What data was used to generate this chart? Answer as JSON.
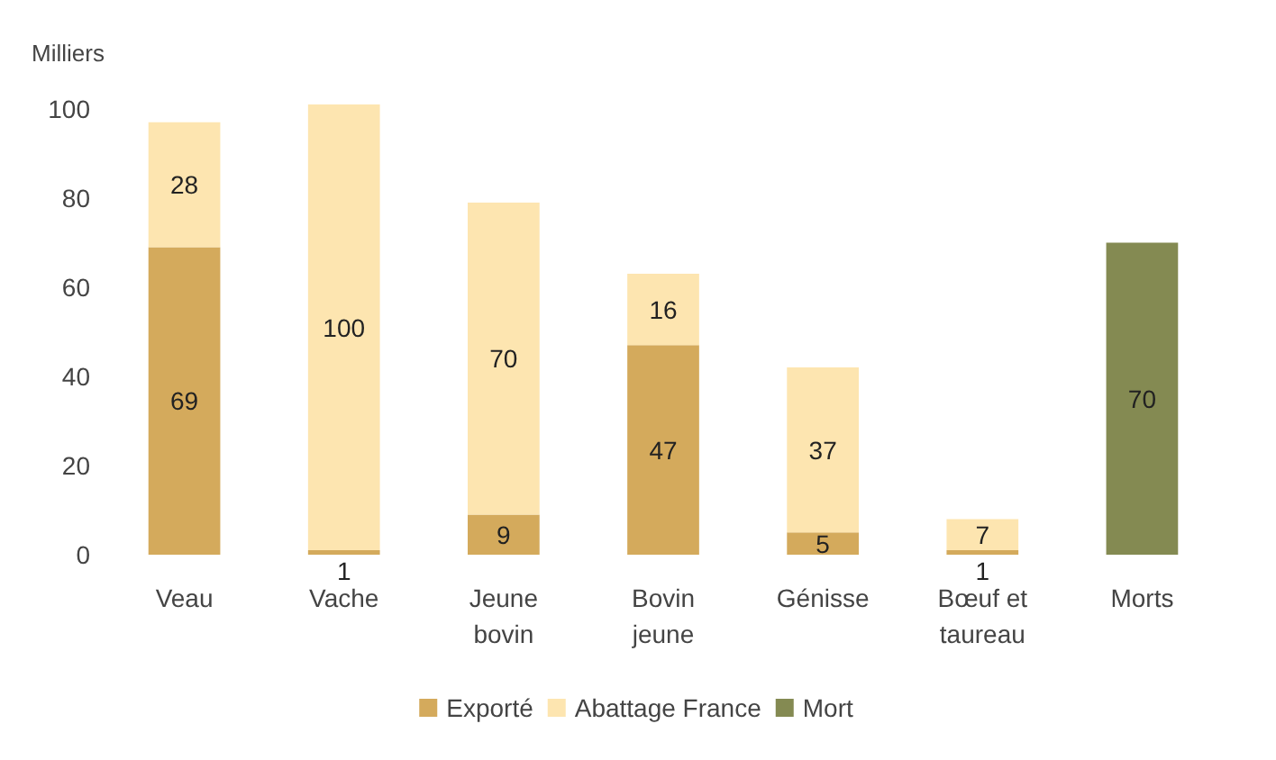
{
  "chart_data": {
    "type": "bar",
    "ylabel": "Milliers",
    "stacked": true,
    "data_labels": true,
    "grid": false,
    "legend": "bottom",
    "categories": [
      "Veau",
      "Vache",
      "Jeune bovin",
      "Bovin jeune",
      "Génisse",
      "Bœuf et taureau",
      "Morts"
    ],
    "series": [
      {
        "name": "Exporté",
        "color": "#d4aa5c",
        "values": [
          69,
          1,
          9,
          47,
          5,
          1,
          null
        ]
      },
      {
        "name": "Abattage France",
        "color": "#fde5b0",
        "values": [
          28,
          100,
          70,
          16,
          37,
          7,
          null
        ]
      },
      {
        "name": "Mort",
        "color": "#848a52",
        "values": [
          null,
          null,
          null,
          null,
          null,
          null,
          70
        ]
      }
    ],
    "ylim": [
      0,
      101
    ],
    "yticks": [
      0,
      20,
      40,
      60,
      80,
      100
    ]
  }
}
